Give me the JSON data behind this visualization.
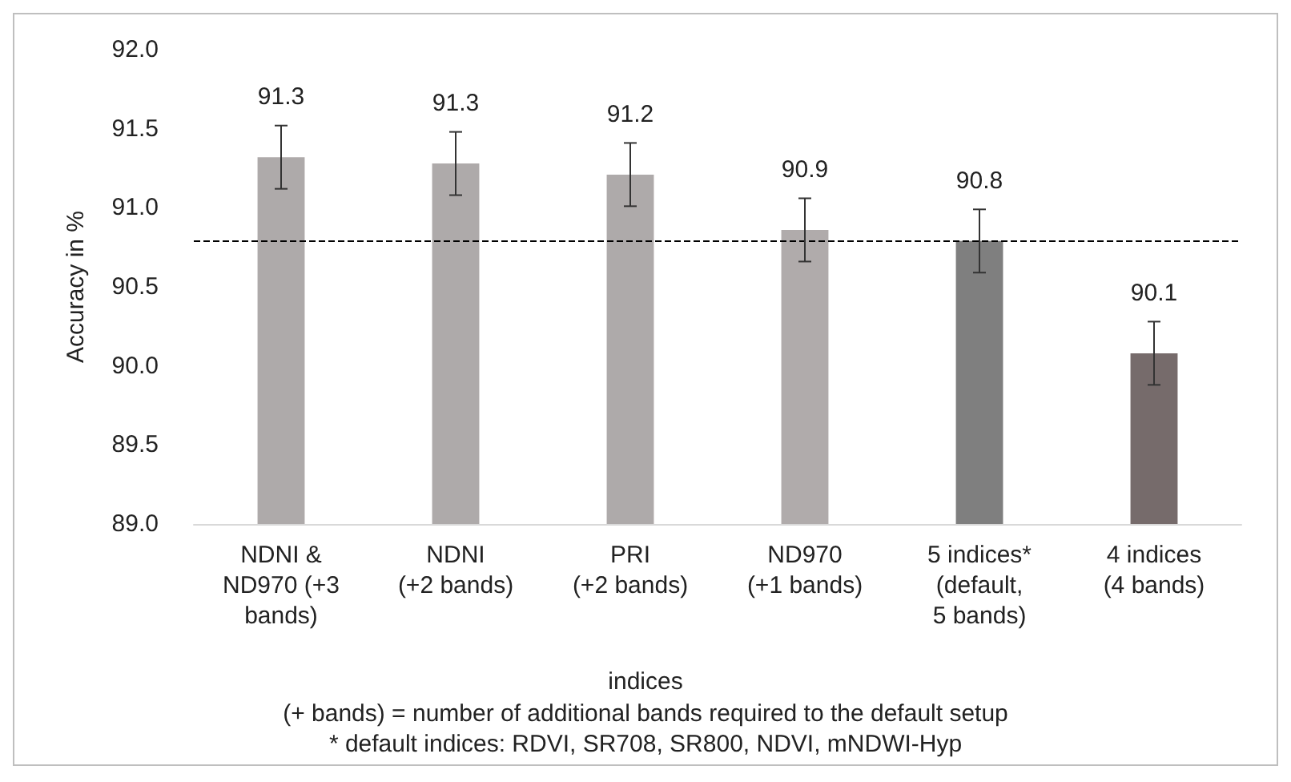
{
  "chart_data": {
    "type": "bar",
    "xlabel": "indices",
    "ylabel": "Accuracy in %",
    "categories": [
      "NDNI &\nND970 (+3\nbands)",
      "NDNI\n(+2 bands)",
      "PRI\n(+2 bands)",
      "ND970\n(+1 bands)",
      "5 indices*\n(default,\n5 bands)",
      "4 indices\n(4 bands)"
    ],
    "values": [
      91.32,
      91.28,
      91.21,
      90.86,
      90.79,
      90.08
    ],
    "colors": [
      "#aeaaaa",
      "#aeaaaa",
      "#aeaaaa",
      "#b0abab",
      "#7f7f7f",
      "#766b6b"
    ],
    "value_labels": [
      "91.3",
      "91.3",
      "91.2",
      "90.9",
      "90.8",
      "90.1"
    ],
    "errors": [
      0.2,
      0.2,
      0.2,
      0.2,
      0.2,
      0.2
    ],
    "ylim": [
      89,
      92
    ],
    "yticks": [
      {
        "value": 89,
        "label": "89.0"
      },
      {
        "value": 89.5,
        "label": "89.5"
      },
      {
        "value": 90,
        "label": "90.0"
      },
      {
        "value": 90.5,
        "label": "90.5"
      },
      {
        "value": 91,
        "label": "91.0"
      },
      {
        "value": 91.5,
        "label": "91.5"
      },
      {
        "value": 92,
        "label": "92.0"
      }
    ],
    "ref_lines": [
      {
        "axis": "y",
        "value": 90.79,
        "color": "#000000",
        "line_style": "dashed"
      }
    ],
    "grid": false,
    "annotations": [
      "(+ bands) = number of additional bands required to the default setup",
      "* default indices: RDVI, SR708, SR800, NDVI, mNDWI-Hyp"
    ]
  }
}
